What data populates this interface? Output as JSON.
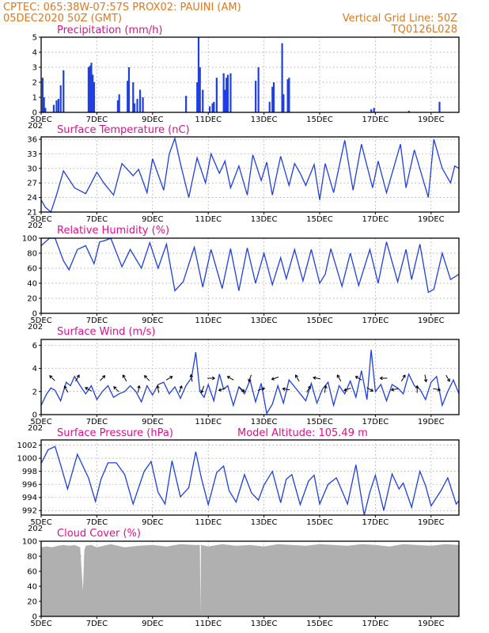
{
  "header": {
    "left_line1": "CPTEC:   065:38W-07:57S   PROX02: PAUINI (AM)",
    "left_line2": "05DEC2020 50Z (GMT)",
    "right_line1": "Vertical Grid Line: 50Z",
    "right_line2": "TQ0126L028"
  },
  "x_axis": {
    "start_day": 5,
    "end_day": 20,
    "tick_labels": [
      "5DEC",
      "7DEC",
      "9DEC",
      "11DEC",
      "13DEC",
      "15DEC",
      "17DEC",
      "19DEC"
    ],
    "tick_days": [
      5,
      7,
      9,
      11,
      13,
      15,
      17,
      19
    ],
    "year_stub": "202"
  },
  "colors": {
    "series": "#1f3fe0",
    "cloud": "#b0b0b0",
    "title": "#e0108a",
    "header": "#e07820"
  },
  "chart_data": [
    {
      "type": "bar",
      "title": "Precipitation (mm/h)",
      "ylim": [
        0,
        5
      ],
      "yticks": [
        0,
        1,
        2,
        3,
        4,
        5
      ],
      "x": [
        5.05,
        5.1,
        5.15,
        5.45,
        5.55,
        5.62,
        5.7,
        5.8,
        6.7,
        6.75,
        6.8,
        6.85,
        6.9,
        7.75,
        7.8,
        8.1,
        8.15,
        8.3,
        8.35,
        8.45,
        8.55,
        8.65,
        10.2,
        10.6,
        10.65,
        10.7,
        10.8,
        11.05,
        11.15,
        11.2,
        11.3,
        11.55,
        11.6,
        11.65,
        11.7,
        11.8,
        12.7,
        12.8,
        13.2,
        13.3,
        13.35,
        13.65,
        13.7,
        13.85,
        13.9,
        16.85,
        16.95,
        18.2,
        19.3
      ],
      "values": [
        2.3,
        1.0,
        0.3,
        0.5,
        0.8,
        0.9,
        1.8,
        2.8,
        3.0,
        3.1,
        3.3,
        2.5,
        2.0,
        0.8,
        1.2,
        2.1,
        3.0,
        2.0,
        0.6,
        0.9,
        1.5,
        1.0,
        1.1,
        2.0,
        5.0,
        3.0,
        1.5,
        0.4,
        0.6,
        0.7,
        2.3,
        2.6,
        1.5,
        2.3,
        2.5,
        2.6,
        2.1,
        3.0,
        0.7,
        1.7,
        2.0,
        4.6,
        1.2,
        2.2,
        2.3,
        0.2,
        0.3,
        0.1,
        0.7
      ]
    },
    {
      "type": "line",
      "title": "Surface Temperature (nC)",
      "ylim": [
        21,
        36.5
      ],
      "yticks": [
        21,
        24,
        27,
        30,
        33,
        36
      ],
      "x": [
        5.0,
        5.15,
        5.35,
        5.55,
        5.8,
        6.2,
        6.6,
        7.0,
        7.25,
        7.6,
        7.9,
        8.3,
        8.5,
        8.8,
        9.0,
        9.4,
        9.6,
        9.8,
        10.0,
        10.3,
        10.6,
        10.9,
        11.1,
        11.4,
        11.6,
        11.8,
        12.1,
        12.4,
        12.6,
        12.9,
        13.1,
        13.3,
        13.6,
        13.9,
        14.1,
        14.3,
        14.5,
        14.8,
        15.0,
        15.2,
        15.5,
        15.9,
        16.2,
        16.5,
        16.9,
        17.1,
        17.4,
        17.9,
        18.1,
        18.4,
        18.9,
        19.1,
        19.4,
        19.7,
        19.85,
        20.0
      ],
      "values": [
        23.5,
        22.0,
        21.0,
        24.5,
        29.5,
        26.0,
        24.8,
        29.2,
        27.0,
        24.5,
        31.0,
        28.5,
        29.8,
        25.0,
        32.0,
        25.5,
        33.0,
        36.2,
        31.0,
        24.0,
        32.2,
        27.0,
        33.0,
        29.0,
        31.5,
        26.0,
        30.5,
        24.5,
        32.8,
        27.5,
        31.3,
        24.5,
        32.5,
        26.5,
        31.0,
        29.0,
        26.5,
        30.8,
        23.5,
        31.0,
        25.0,
        35.8,
        25.5,
        35.0,
        26.0,
        31.5,
        25.0,
        35.0,
        26.0,
        33.8,
        24.0,
        36.0,
        30.0,
        27.0,
        30.5,
        30.0
      ]
    },
    {
      "type": "line",
      "title": "Relative Humidity (%)",
      "ylim": [
        0,
        100
      ],
      "yticks": [
        0,
        20,
        40,
        60,
        80,
        100
      ],
      "x": [
        5.0,
        5.3,
        5.5,
        5.8,
        6.0,
        6.3,
        6.6,
        6.9,
        7.1,
        7.3,
        7.5,
        7.9,
        8.2,
        8.6,
        8.9,
        9.2,
        9.5,
        9.8,
        10.1,
        10.5,
        10.8,
        11.1,
        11.5,
        11.8,
        12.1,
        12.4,
        12.7,
        13.0,
        13.3,
        13.6,
        13.8,
        14.1,
        14.4,
        14.7,
        15.0,
        15.2,
        15.4,
        15.8,
        16.1,
        16.4,
        16.8,
        17.1,
        17.4,
        17.8,
        18.1,
        18.3,
        18.6,
        18.9,
        19.1,
        19.4,
        19.7,
        20.0
      ],
      "values": [
        90,
        100,
        100,
        70,
        58,
        85,
        90,
        66,
        95,
        97,
        100,
        62,
        85,
        60,
        94,
        60,
        92,
        30,
        42,
        88,
        35,
        85,
        33,
        86,
        30,
        87,
        40,
        80,
        38,
        74,
        46,
        85,
        43,
        85,
        40,
        52,
        86,
        36,
        80,
        37,
        85,
        40,
        95,
        42,
        85,
        45,
        92,
        28,
        32,
        80,
        45,
        52
      ]
    },
    {
      "type": "line",
      "title": "Surface Wind (m/s)",
      "ylim": [
        0,
        6.5
      ],
      "yticks": [
        0,
        2,
        4,
        6
      ],
      "x": [
        5.0,
        5.2,
        5.35,
        5.5,
        5.7,
        5.9,
        6.05,
        6.2,
        6.4,
        6.6,
        6.8,
        7.0,
        7.2,
        7.4,
        7.6,
        7.8,
        8.0,
        8.2,
        8.4,
        8.6,
        8.8,
        9.0,
        9.2,
        9.4,
        9.6,
        9.8,
        10.0,
        10.2,
        10.4,
        10.55,
        10.7,
        10.85,
        11.0,
        11.2,
        11.4,
        11.55,
        11.7,
        11.9,
        12.1,
        12.3,
        12.5,
        12.7,
        12.9,
        13.1,
        13.3,
        13.5,
        13.7,
        13.9,
        14.1,
        14.3,
        14.5,
        14.7,
        14.9,
        15.1,
        15.3,
        15.5,
        15.7,
        15.9,
        16.1,
        16.3,
        16.5,
        16.7,
        16.85,
        17.0,
        17.2,
        17.4,
        17.6,
        17.8,
        18.0,
        18.2,
        18.4,
        18.6,
        18.8,
        19.0,
        19.2,
        19.4,
        19.6,
        19.8,
        20.0
      ],
      "values": [
        0.8,
        1.8,
        2.3,
        2.1,
        1.2,
        2.8,
        2.5,
        3.3,
        2.5,
        1.8,
        2.5,
        1.3,
        2.0,
        2.5,
        1.5,
        1.8,
        2.0,
        2.5,
        2.0,
        1.1,
        2.5,
        1.7,
        2.6,
        2.8,
        1.8,
        2.4,
        1.4,
        2.5,
        3.2,
        5.4,
        2.0,
        1.5,
        2.6,
        1.2,
        3.5,
        2.2,
        2.5,
        0.8,
        2.4,
        1.8,
        3.0,
        1.1,
        2.7,
        0.1,
        0.9,
        2.5,
        1.0,
        3.0,
        2.4,
        1.8,
        1.2,
        2.7,
        1.0,
        2.2,
        2.8,
        0.8,
        2.5,
        1.8,
        2.9,
        1.5,
        3.8,
        1.3,
        5.6,
        2.0,
        2.6,
        1.2,
        2.6,
        2.3,
        1.8,
        3.5,
        2.5,
        2.2,
        1.3,
        2.8,
        3.3,
        0.8,
        2.0,
        3.0,
        1.8
      ]
    },
    {
      "type": "line",
      "title": "Surface Pressure (hPa)",
      "annotation": "Model Altitude: 105.49 m",
      "ylim": [
        991.3,
        1002.8
      ],
      "yticks": [
        992,
        994,
        996,
        998,
        1000,
        1002
      ],
      "x": [
        5.0,
        5.25,
        5.5,
        5.7,
        5.95,
        6.3,
        6.7,
        6.95,
        7.15,
        7.4,
        7.7,
        8.0,
        8.3,
        8.7,
        8.95,
        9.2,
        9.45,
        9.7,
        10.0,
        10.3,
        10.55,
        10.75,
        11.0,
        11.3,
        11.55,
        11.75,
        12.0,
        12.3,
        12.55,
        12.8,
        13.0,
        13.3,
        13.6,
        13.8,
        14.0,
        14.3,
        14.6,
        14.8,
        15.0,
        15.3,
        15.6,
        15.8,
        16.0,
        16.3,
        16.6,
        16.8,
        17.0,
        17.3,
        17.6,
        17.85,
        18.0,
        18.3,
        18.6,
        18.8,
        19.0,
        19.35,
        19.6,
        19.9,
        20.0
      ],
      "values": [
        999.2,
        1001.3,
        1001.8,
        999.0,
        995.3,
        1000.6,
        997.0,
        993.4,
        996.8,
        999.3,
        999.3,
        997.5,
        993.0,
        998.0,
        999.5,
        994.8,
        993.0,
        999.6,
        994.1,
        995.5,
        1001.0,
        997.0,
        992.9,
        997.8,
        998.8,
        995.0,
        993.3,
        997.5,
        994.7,
        993.6,
        995.9,
        998.0,
        993.2,
        996.8,
        997.5,
        992.9,
        996.5,
        997.4,
        993.0,
        996.0,
        997.0,
        995.0,
        993.0,
        999.0,
        991.3,
        994.8,
        997.4,
        992.0,
        997.6,
        995.3,
        996.2,
        992.5,
        998.0,
        995.8,
        992.7,
        995.0,
        997.0,
        993.0,
        993.5
      ]
    },
    {
      "type": "area",
      "title": "Cloud Cover (%)",
      "ylim": [
        0,
        100
      ],
      "yticks": [
        0,
        20,
        40,
        60,
        80,
        100
      ],
      "x": [
        5.0,
        5.2,
        5.4,
        5.6,
        5.8,
        6.0,
        6.2,
        6.4,
        6.5,
        6.55,
        6.6,
        6.8,
        7.0,
        7.5,
        8.0,
        8.5,
        9.0,
        9.5,
        10.0,
        10.5,
        10.7,
        10.72,
        10.74,
        10.9,
        11.0,
        11.5,
        12.0,
        12.5,
        13.0,
        13.5,
        14.0,
        14.5,
        15.0,
        15.5,
        16.0,
        16.5,
        17.0,
        17.5,
        18.0,
        18.5,
        19.0,
        19.5,
        20.0
      ],
      "values": [
        92,
        93,
        92,
        94,
        95,
        94,
        95,
        92,
        34,
        88,
        94,
        95,
        92,
        96,
        92,
        94,
        95,
        93,
        96,
        95,
        95,
        3,
        95,
        94,
        93,
        96,
        94,
        95,
        93,
        96,
        95,
        94,
        96,
        95,
        94,
        96,
        95,
        93,
        96,
        95,
        94,
        96,
        95
      ]
    }
  ],
  "wind_arrows": {
    "x": [
      5.4,
      5.9,
      6.3,
      6.7,
      7.2,
      7.7,
      8.0,
      8.5,
      8.8,
      9.2,
      9.6,
      10.0,
      10.4,
      10.8,
      11.1,
      11.5,
      11.8,
      12.2,
      12.5,
      12.9,
      13.4,
      13.8,
      14.2,
      14.6,
      14.9,
      15.2,
      15.7,
      16.0,
      16.4,
      16.8,
      17.3,
      17.7,
      18.0,
      18.5,
      18.8,
      19.2,
      19.6
    ],
    "dir_deg": [
      135,
      120,
      60,
      150,
      45,
      135,
      120,
      80,
      135,
      100,
      30,
      70,
      100,
      250,
      0,
      200,
      150,
      320,
      250,
      20,
      200,
      170,
      120,
      60,
      170,
      80,
      120,
      200,
      150,
      330,
      180,
      190,
      60,
      90,
      280,
      350,
      300
    ]
  }
}
